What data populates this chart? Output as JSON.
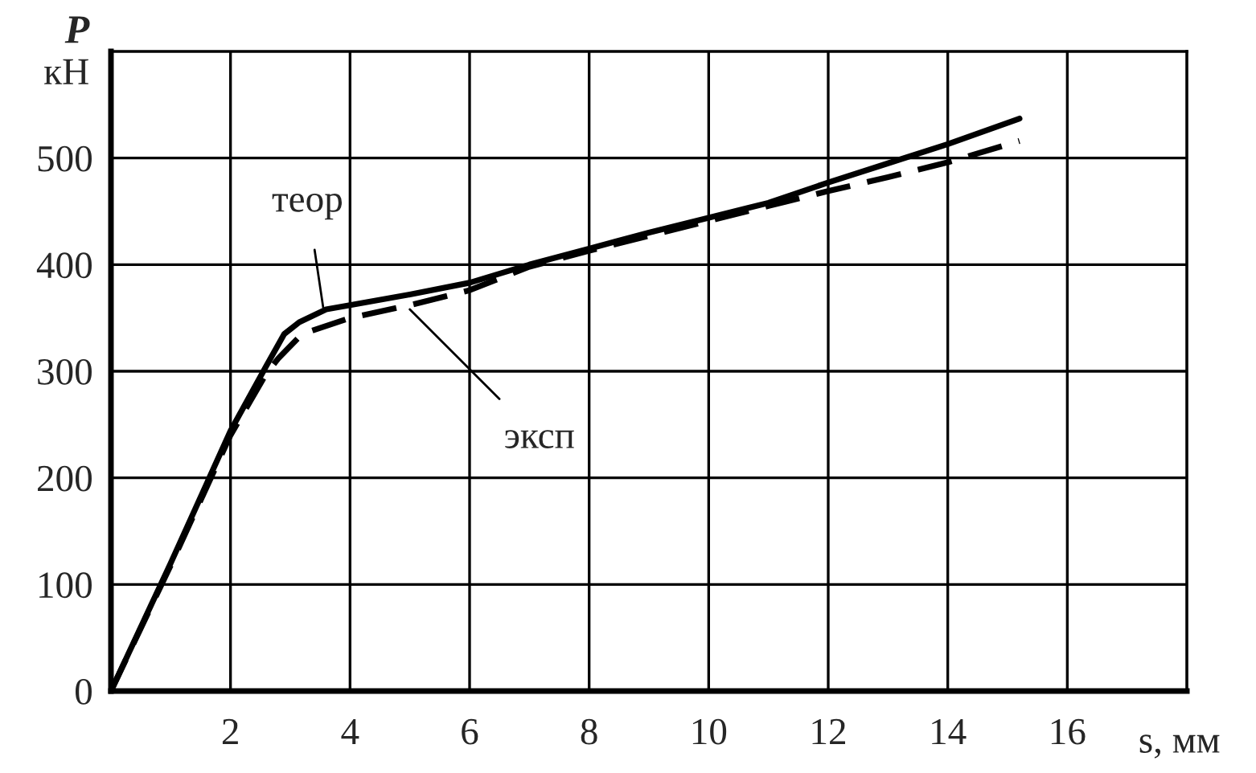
{
  "chart_data": {
    "type": "line",
    "xlabel": "s, мм",
    "ylabel": "P\nкН",
    "xlim": [
      0,
      18
    ],
    "ylim": [
      0,
      600
    ],
    "xticks": [
      2,
      4,
      6,
      8,
      10,
      12,
      14,
      16
    ],
    "yticks": [
      0,
      100,
      200,
      300,
      400,
      500
    ],
    "grid": true,
    "legend": false,
    "marker": "none",
    "series": [
      {
        "color": "#000000",
        "line_style": "solid",
        "x": [
          0,
          1,
          2,
          2.6,
          2.9,
          3.15,
          3.6,
          4,
          5,
          6,
          7,
          8,
          9,
          10,
          11,
          12,
          13,
          14,
          15.2
        ],
        "values": [
          0,
          120,
          244,
          305,
          335,
          346,
          358,
          362,
          372,
          383,
          400,
          415,
          430,
          444,
          458,
          477,
          495,
          513,
          537
        ]
      },
      {
        "color": "#000000",
        "line_style": "dashed",
        "x": [
          0,
          1,
          2,
          2.6,
          2.8,
          3.2,
          4,
          5,
          6,
          7,
          8,
          9,
          10,
          11,
          12,
          13,
          14,
          15.2
        ],
        "values": [
          0,
          118,
          240,
          298,
          312,
          335,
          350,
          362,
          376,
          398,
          413,
          427,
          441,
          455,
          469,
          482,
          496,
          516
        ]
      }
    ],
    "annotations": [
      {
        "text": "теор",
        "x": 3.55,
        "y": 360
      },
      {
        "text": "эксп",
        "x": 5.0,
        "y": 358
      }
    ]
  }
}
